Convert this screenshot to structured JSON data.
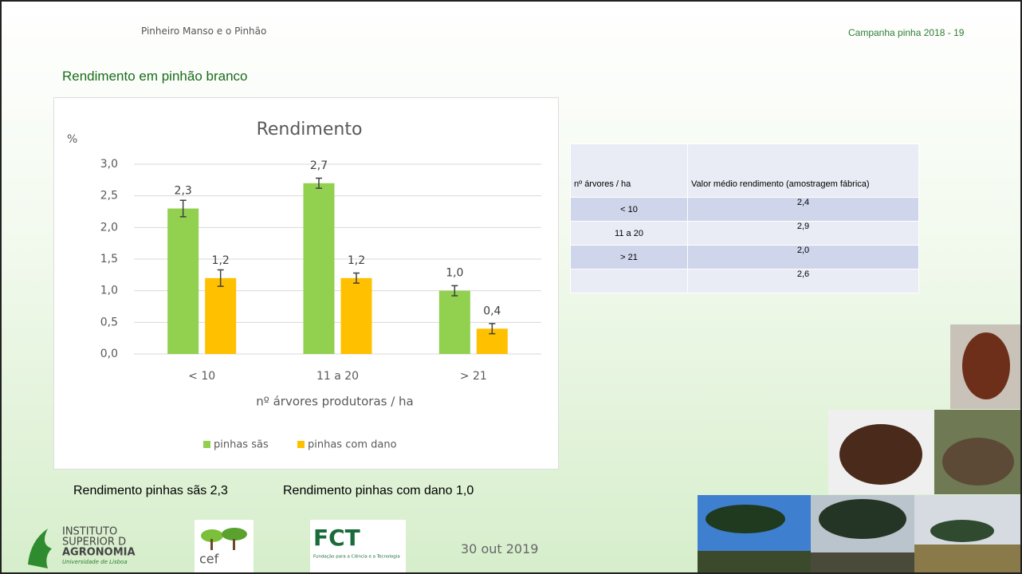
{
  "header": {
    "left": "Pinheiro Manso e o Pinhão",
    "right": "Campanha pinha 2018 - 19",
    "title": "Rendimento em pinhão branco"
  },
  "chart_data": {
    "type": "bar",
    "title": "Rendimento",
    "y_label": "%",
    "x_label": "nº árvores produtoras / ha",
    "categories": [
      "< 10",
      "11 a 20",
      "> 21"
    ],
    "series": [
      {
        "name": "pinhas sãs",
        "color": "#92d050",
        "values": [
          2.3,
          2.7,
          1.0
        ],
        "value_labels": [
          "2,3",
          "2,7",
          "1,0"
        ],
        "errors": [
          0.13,
          0.08,
          0.08
        ]
      },
      {
        "name": "pinhas com dano",
        "color": "#ffc000",
        "values": [
          1.2,
          1.2,
          0.4
        ],
        "value_labels": [
          "1,2",
          "1,2",
          "0,4"
        ],
        "errors": [
          0.13,
          0.08,
          0.08
        ]
      }
    ],
    "ylim": [
      0,
      3
    ],
    "yticks": [
      {
        "value": 0,
        "label": "0,0"
      },
      {
        "value": 0.5,
        "label": "0,5"
      },
      {
        "value": 1,
        "label": "1,0"
      },
      {
        "value": 1.5,
        "label": "1,5"
      },
      {
        "value": 2,
        "label": "2,0"
      },
      {
        "value": 2.5,
        "label": "2,5"
      },
      {
        "value": 3,
        "label": "3,0"
      }
    ],
    "grid": true,
    "legend": "bottom"
  },
  "table": {
    "header": [
      "nº árvores / ha",
      "Valor médio rendimento (amostragem fábrica)"
    ],
    "rows": [
      [
        "< 10",
        "2,4"
      ],
      [
        "11 a 20",
        "2,9"
      ],
      [
        "> 21",
        "2,0"
      ],
      [
        null,
        "2,6"
      ]
    ]
  },
  "summary": [
    "Rendimento pinhas sãs 2,3",
    "Rendimento pinhas com dano 1,0"
  ],
  "date": "30 out 2019",
  "logos": {
    "isa": [
      "INSTITUTO",
      "SUPERIOR D",
      "AGRONOMIA",
      "Universidade de Lisboa"
    ],
    "cef": "cef",
    "fct": "FCT",
    "fct_sub": "Fundação para a Ciência e a Tecnologia"
  }
}
